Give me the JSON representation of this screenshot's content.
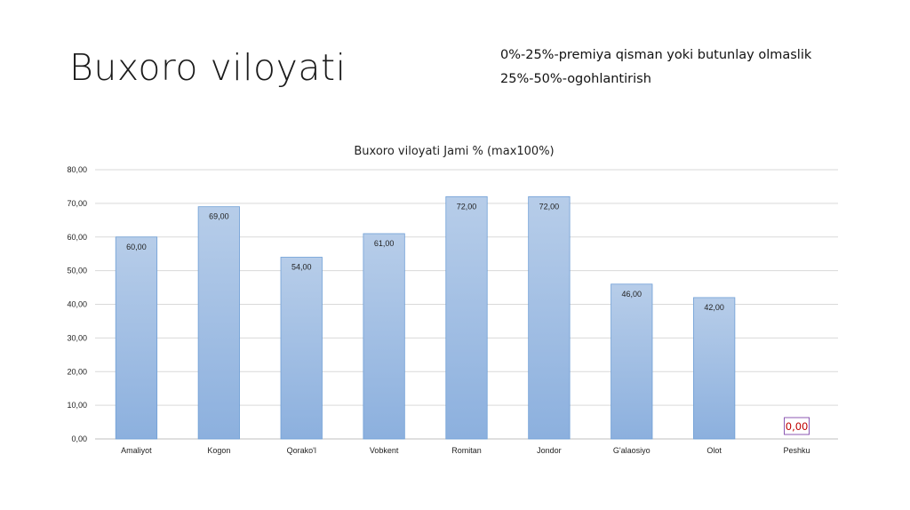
{
  "slide": {
    "title": "Buxoro viloyati",
    "notes": [
      "0%-25%-premiya qisman yoki butunlay olmaslik",
      "25%-50%-ogohlantirish"
    ]
  },
  "chart_data": {
    "type": "bar",
    "title": "Buxoro viloyati Jami % (max100%)",
    "xlabel": "",
    "ylabel": "",
    "ylim": [
      0,
      80
    ],
    "yticks": [
      0,
      10,
      20,
      30,
      40,
      50,
      60,
      70,
      80
    ],
    "ytick_labels": [
      "0,00",
      "10,00",
      "20,00",
      "30,00",
      "40,00",
      "50,00",
      "60,00",
      "70,00",
      "80,00"
    ],
    "grid": true,
    "legend": "none",
    "categories": [
      "Amaliyot",
      "Kogon",
      "Qorako'l",
      "Vobkent",
      "Romitan",
      "Jondor",
      "G'alaosiyo",
      "Olot",
      "Peshku"
    ],
    "values": [
      60,
      69,
      54,
      61,
      72,
      72,
      46,
      42,
      0
    ],
    "value_labels": [
      "60,00",
      "69,00",
      "54,00",
      "61,00",
      "72,00",
      "72,00",
      "46,00",
      "42,00",
      "0,00"
    ],
    "colors": {
      "bar_top": "#b7cde9",
      "bar_bottom": "#8cb0de",
      "bar_border": "#6f9fd6",
      "grid": "#d9d9d9",
      "axis": "#bfbfbf",
      "highlight_label": "#c00000",
      "highlight_box": "#7030a0"
    }
  }
}
